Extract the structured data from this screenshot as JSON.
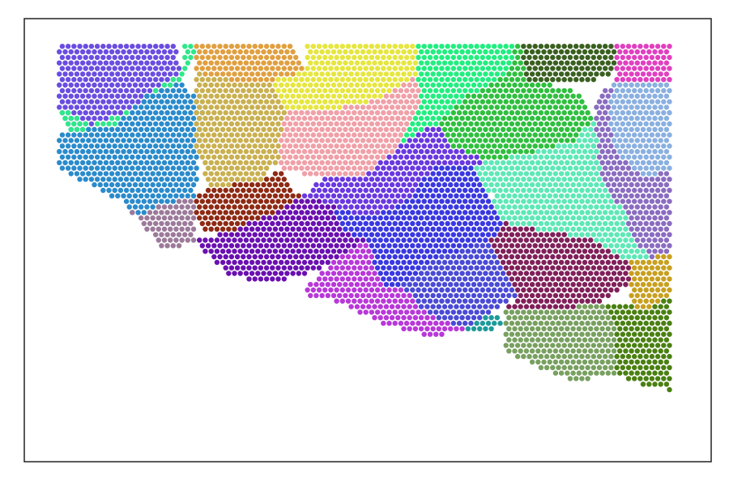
{
  "chart_data": {
    "type": "scatter",
    "title": "",
    "xlabel": "",
    "ylabel": "",
    "xlim": [
      0,
      100
    ],
    "ylim": [
      0,
      100
    ],
    "axes_visible": false,
    "grid": false,
    "legend": "none",
    "series": [
      {
        "color": "#6b4de0",
        "polygon": [
          [
            5,
            95
          ],
          [
            22,
            95
          ],
          [
            23,
            86
          ],
          [
            16,
            80
          ],
          [
            10,
            76
          ],
          [
            7,
            74
          ],
          [
            5,
            80
          ]
        ]
      },
      {
        "color": "#2ee88a",
        "polygon": [
          [
            5,
            80
          ],
          [
            10,
            76
          ],
          [
            16,
            80
          ],
          [
            23,
            86
          ],
          [
            25,
            92
          ],
          [
            25,
            95
          ],
          [
            23,
            95
          ],
          [
            23,
            88
          ],
          [
            18,
            83
          ],
          [
            13,
            76
          ],
          [
            7,
            74
          ]
        ]
      },
      {
        "color": "#2a8bcc",
        "polygon": [
          [
            5,
            74
          ],
          [
            13,
            76
          ],
          [
            18,
            83
          ],
          [
            23,
            86
          ],
          [
            26,
            80
          ],
          [
            25,
            60
          ],
          [
            20,
            58
          ],
          [
            16,
            55
          ],
          [
            14,
            59
          ],
          [
            5,
            66
          ]
        ]
      },
      {
        "color": "#9c7a9a",
        "polygon": [
          [
            14,
            59
          ],
          [
            16,
            55
          ],
          [
            20,
            58
          ],
          [
            25,
            60
          ],
          [
            25,
            50
          ],
          [
            22,
            48
          ],
          [
            20,
            48
          ],
          [
            16,
            56
          ]
        ]
      },
      {
        "color": "#e0a040",
        "polygon": [
          [
            25,
            95
          ],
          [
            39,
            95
          ],
          [
            41,
            88
          ],
          [
            36,
            86
          ],
          [
            30,
            86
          ],
          [
            25,
            88
          ]
        ]
      },
      {
        "color": "#c9b050",
        "polygon": [
          [
            25,
            88
          ],
          [
            30,
            86
          ],
          [
            36,
            86
          ],
          [
            38,
            80
          ],
          [
            37,
            68
          ],
          [
            34,
            63
          ],
          [
            27,
            62
          ],
          [
            25,
            70
          ],
          [
            25,
            80
          ]
        ]
      },
      {
        "color": "#e6e640",
        "polygon": [
          [
            41,
            95
          ],
          [
            57,
            95
          ],
          [
            57,
            87
          ],
          [
            52,
            82
          ],
          [
            46,
            80
          ],
          [
            38,
            80
          ],
          [
            36,
            86
          ],
          [
            41,
            88
          ]
        ]
      },
      {
        "color": "#f0a0a8",
        "polygon": [
          [
            38,
            80
          ],
          [
            46,
            80
          ],
          [
            52,
            82
          ],
          [
            57,
            87
          ],
          [
            58,
            81
          ],
          [
            55,
            72
          ],
          [
            50,
            65
          ],
          [
            44,
            64
          ],
          [
            37,
            66
          ],
          [
            37,
            70
          ]
        ]
      },
      {
        "color": "#22ee80",
        "polygon": [
          [
            57,
            95
          ],
          [
            72,
            95
          ],
          [
            70,
            87
          ],
          [
            64,
            82
          ],
          [
            60,
            76
          ],
          [
            57,
            74
          ],
          [
            55,
            72
          ],
          [
            58,
            81
          ],
          [
            57,
            87
          ]
        ]
      },
      {
        "color": "#2fbf3f",
        "polygon": [
          [
            72,
            95
          ],
          [
            73,
            86
          ],
          [
            80,
            84
          ],
          [
            83,
            78
          ],
          [
            80,
            72
          ],
          [
            74,
            70
          ],
          [
            68,
            68
          ],
          [
            62,
            71
          ],
          [
            60,
            76
          ],
          [
            64,
            82
          ],
          [
            70,
            87
          ]
        ]
      },
      {
        "color": "#3a6020",
        "polygon": [
          [
            72,
            95
          ],
          [
            86,
            95
          ],
          [
            86,
            88
          ],
          [
            82,
            85
          ],
          [
            73,
            86
          ]
        ]
      },
      {
        "color": "#e040c0",
        "polygon": [
          [
            86,
            95
          ],
          [
            94,
            95
          ],
          [
            94,
            86
          ],
          [
            86,
            86
          ],
          [
            86,
            88
          ]
        ]
      },
      {
        "color": "#8ab0e0",
        "polygon": [
          [
            86,
            86
          ],
          [
            94,
            86
          ],
          [
            94,
            66
          ],
          [
            90,
            64
          ],
          [
            86,
            70
          ],
          [
            85,
            80
          ]
        ]
      },
      {
        "color": "#8a6cc0",
        "polygon": [
          [
            83,
            82
          ],
          [
            86,
            86
          ],
          [
            85,
            80
          ],
          [
            86,
            70
          ],
          [
            90,
            64
          ],
          [
            94,
            66
          ],
          [
            94,
            47
          ],
          [
            91,
            46
          ],
          [
            89,
            50
          ],
          [
            87,
            57
          ],
          [
            84,
            64
          ],
          [
            82,
            72
          ],
          [
            83,
            78
          ]
        ]
      },
      {
        "color": "#5ee8b8",
        "polygon": [
          [
            68,
            68
          ],
          [
            74,
            70
          ],
          [
            80,
            72
          ],
          [
            83,
            78
          ],
          [
            84,
            64
          ],
          [
            87,
            57
          ],
          [
            89,
            50
          ],
          [
            91,
            46
          ],
          [
            88,
            45
          ],
          [
            83,
            50
          ],
          [
            76,
            52
          ],
          [
            70,
            54
          ],
          [
            68,
            60
          ],
          [
            65,
            67
          ]
        ]
      },
      {
        "color": "#6a38e0",
        "polygon": [
          [
            44,
            64
          ],
          [
            50,
            65
          ],
          [
            55,
            72
          ],
          [
            57,
            74
          ],
          [
            60,
            76
          ],
          [
            62,
            71
          ],
          [
            68,
            68
          ],
          [
            65,
            67
          ],
          [
            60,
            67
          ],
          [
            55,
            58
          ],
          [
            50,
            55
          ],
          [
            45,
            58
          ],
          [
            40,
            60
          ]
        ]
      },
      {
        "color": "#3a38e0",
        "polygon": [
          [
            45,
            58
          ],
          [
            50,
            55
          ],
          [
            55,
            58
          ],
          [
            60,
            67
          ],
          [
            65,
            67
          ],
          [
            68,
            60
          ],
          [
            70,
            54
          ],
          [
            68,
            50
          ],
          [
            60,
            46
          ],
          [
            55,
            40
          ],
          [
            52,
            40
          ],
          [
            50,
            50
          ],
          [
            46,
            52
          ]
        ]
      },
      {
        "color": "#8e2a14",
        "polygon": [
          [
            25,
            60
          ],
          [
            27,
            62
          ],
          [
            34,
            63
          ],
          [
            37,
            66
          ],
          [
            40,
            60
          ],
          [
            36,
            56
          ],
          [
            30,
            52
          ],
          [
            26,
            52
          ],
          [
            25,
            55
          ]
        ]
      },
      {
        "color": "#6a10b0",
        "polygon": [
          [
            25,
            50
          ],
          [
            30,
            52
          ],
          [
            36,
            56
          ],
          [
            40,
            60
          ],
          [
            45,
            58
          ],
          [
            46,
            52
          ],
          [
            50,
            50
          ],
          [
            44,
            44
          ],
          [
            36,
            40
          ],
          [
            30,
            42
          ],
          [
            26,
            48
          ]
        ]
      },
      {
        "color": "#b838d8",
        "polygon": [
          [
            44,
            44
          ],
          [
            50,
            50
          ],
          [
            52,
            40
          ],
          [
            55,
            40
          ],
          [
            58,
            34
          ],
          [
            64,
            30
          ],
          [
            60,
            28
          ],
          [
            52,
            31
          ],
          [
            46,
            36
          ],
          [
            40,
            38
          ]
        ]
      },
      {
        "color": "#4a4ad6",
        "polygon": [
          [
            55,
            40
          ],
          [
            60,
            46
          ],
          [
            68,
            50
          ],
          [
            70,
            44
          ],
          [
            72,
            38
          ],
          [
            68,
            34
          ],
          [
            64,
            30
          ],
          [
            58,
            34
          ]
        ]
      },
      {
        "color": "#1e9a9a",
        "polygon": [
          [
            64,
            30
          ],
          [
            68,
            34
          ],
          [
            70,
            32
          ],
          [
            68,
            29
          ]
        ]
      },
      {
        "color": "#80205a",
        "polygon": [
          [
            68,
            50
          ],
          [
            70,
            54
          ],
          [
            76,
            52
          ],
          [
            83,
            50
          ],
          [
            88,
            45
          ],
          [
            88,
            40
          ],
          [
            84,
            36
          ],
          [
            80,
            35
          ],
          [
            74,
            34
          ],
          [
            70,
            34
          ],
          [
            72,
            38
          ],
          [
            70,
            44
          ]
        ]
      },
      {
        "color": "#c8a020",
        "polygon": [
          [
            88,
            45
          ],
          [
            91,
            46
          ],
          [
            94,
            47
          ],
          [
            94,
            38
          ],
          [
            90,
            34
          ],
          [
            88,
            36
          ],
          [
            88,
            40
          ]
        ]
      },
      {
        "color": "#78a060",
        "polygon": [
          [
            70,
            34
          ],
          [
            74,
            34
          ],
          [
            80,
            35
          ],
          [
            84,
            36
          ],
          [
            86,
            32
          ],
          [
            86,
            20
          ],
          [
            80,
            18
          ],
          [
            74,
            22
          ],
          [
            70,
            25
          ],
          [
            70,
            32
          ]
        ]
      },
      {
        "color": "#4a8012",
        "polygon": [
          [
            84,
            36
          ],
          [
            88,
            36
          ],
          [
            90,
            34
          ],
          [
            94,
            38
          ],
          [
            94,
            16
          ],
          [
            88,
            18
          ],
          [
            86,
            20
          ],
          [
            86,
            32
          ]
        ]
      }
    ]
  }
}
